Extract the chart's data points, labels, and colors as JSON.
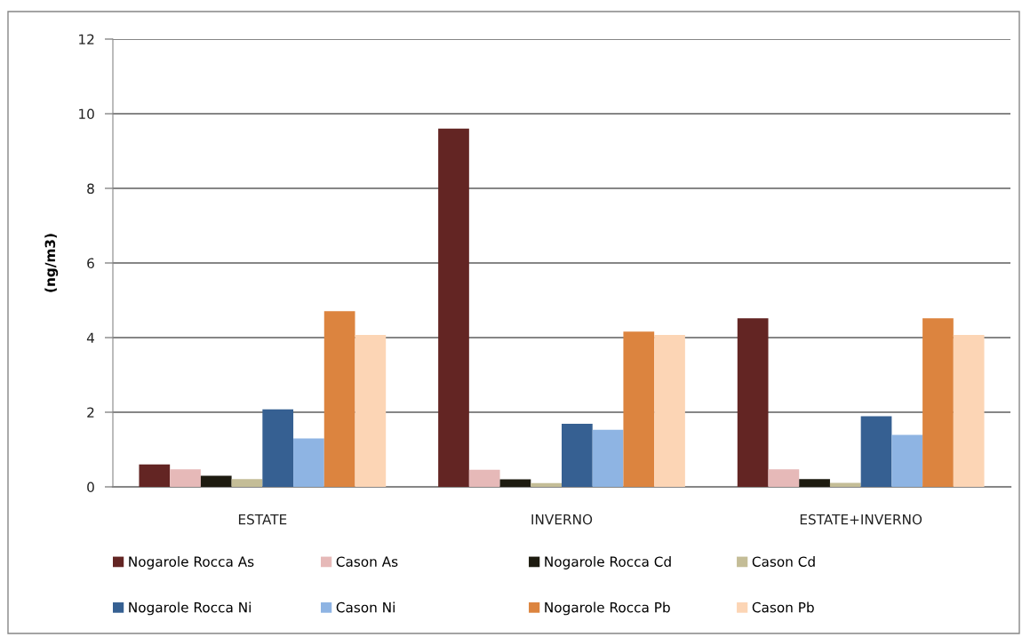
{
  "chart_data": {
    "type": "bar",
    "ylabel": "(ng/m3)",
    "categories": [
      "ESTATE",
      "INVERNO",
      "ESTATE+INVERNO"
    ],
    "series": [
      {
        "name": "Nogarole Rocca As",
        "color": "#632523",
        "values": [
          0.6,
          9.6,
          4.52
        ]
      },
      {
        "name": "Cason As",
        "color": "#e6b9b8",
        "values": [
          0.47,
          0.46,
          0.47
        ]
      },
      {
        "name": "Nogarole Rocca Cd",
        "color": "#1d1b10",
        "values": [
          0.3,
          0.2,
          0.21
        ]
      },
      {
        "name": "Cason Cd",
        "color": "#c4bd97",
        "values": [
          0.21,
          0.1,
          0.11
        ]
      },
      {
        "name": "Nogarole Rocca Ni",
        "color": "#366092",
        "values": [
          2.08,
          1.69,
          1.89
        ]
      },
      {
        "name": "Cason Ni",
        "color": "#8eb4e3",
        "values": [
          1.3,
          1.53,
          1.39
        ]
      },
      {
        "name": "Nogarole Rocca Pb",
        "color": "#dc843f",
        "values": [
          4.71,
          4.16,
          4.52
        ]
      },
      {
        "name": "Cason Pb",
        "color": "#fcd5b5",
        "values": [
          4.07,
          4.07,
          4.07
        ]
      }
    ],
    "ylim": [
      0,
      12
    ],
    "yticks": [
      0,
      2,
      4,
      6,
      8,
      10,
      12
    ],
    "grid": "y",
    "legend": "bottom"
  }
}
